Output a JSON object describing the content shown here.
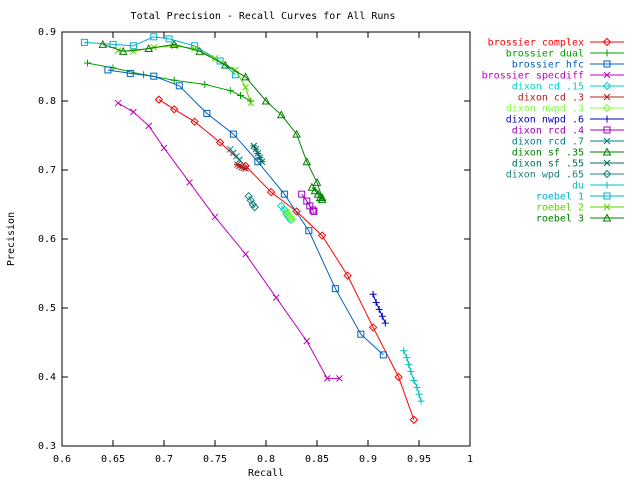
{
  "chart_data": {
    "type": "line",
    "title": "Total Precision - Recall Curves for All Runs",
    "xlabel": "Recall",
    "ylabel": "Precision",
    "xlim": [
      0.6,
      1.0
    ],
    "ylim": [
      0.3,
      0.9
    ],
    "xticks": [
      "0.6",
      "0.65",
      "0.7",
      "0.75",
      "0.8",
      "0.85",
      "0.9",
      "0.95",
      "1"
    ],
    "yticks": [
      "0.3",
      "0.4",
      "0.5",
      "0.6",
      "0.7",
      "0.8",
      "0.9"
    ],
    "grid": false,
    "legend_position": "outside-right",
    "series": [
      {
        "name": "brossier complex",
        "color": "#ff0000",
        "marker": "diamond",
        "x": [
          0.695,
          0.71,
          0.73,
          0.755,
          0.78,
          0.805,
          0.83,
          0.855,
          0.88,
          0.905,
          0.93,
          0.945
        ],
        "y": [
          0.802,
          0.788,
          0.77,
          0.74,
          0.706,
          0.668,
          0.64,
          0.605,
          0.547,
          0.472,
          0.4,
          0.338
        ]
      },
      {
        "name": "brossier dual",
        "color": "#00a000",
        "marker": "plus",
        "x": [
          0.625,
          0.65,
          0.68,
          0.71,
          0.74,
          0.765,
          0.775,
          0.785
        ],
        "y": [
          0.855,
          0.848,
          0.838,
          0.83,
          0.824,
          0.815,
          0.808,
          0.8
        ]
      },
      {
        "name": "brossier hfc",
        "color": "#0060c0",
        "marker": "square",
        "x": [
          0.645,
          0.667,
          0.69,
          0.715,
          0.742,
          0.768,
          0.792,
          0.818,
          0.842,
          0.868,
          0.893,
          0.915
        ],
        "y": [
          0.845,
          0.84,
          0.836,
          0.822,
          0.782,
          0.752,
          0.712,
          0.665,
          0.612,
          0.528,
          0.462,
          0.432
        ]
      },
      {
        "name": "brossier specdiff",
        "color": "#c000c0",
        "marker": "cross",
        "x": [
          0.655,
          0.67,
          0.685,
          0.7,
          0.725,
          0.75,
          0.78,
          0.81,
          0.84,
          0.86,
          0.872
        ],
        "y": [
          0.797,
          0.784,
          0.764,
          0.732,
          0.682,
          0.632,
          0.578,
          0.515,
          0.452,
          0.398,
          0.398
        ]
      },
      {
        "name": "dixon cd .15",
        "color": "#00d0d0",
        "marker": "diamond",
        "x": [
          0.815,
          0.818,
          0.82,
          0.822,
          0.824
        ],
        "y": [
          0.648,
          0.642,
          0.636,
          0.632,
          0.628
        ]
      },
      {
        "name": "dixon cd .3",
        "color": "#b02020",
        "marker": "asterisk",
        "x": [
          0.772,
          0.774,
          0.776,
          0.778,
          0.78
        ],
        "y": [
          0.708,
          0.706,
          0.704,
          0.703,
          0.702
        ]
      },
      {
        "name": "dixon nwpd .3",
        "color": "#80ff40",
        "marker": "diamond",
        "x": [
          0.82,
          0.822,
          0.824,
          0.826
        ],
        "y": [
          0.641,
          0.636,
          0.632,
          0.628
        ]
      },
      {
        "name": "dixon nwpd .6",
        "color": "#0000c0",
        "marker": "plus",
        "x": [
          0.905,
          0.908,
          0.911,
          0.914,
          0.917
        ],
        "y": [
          0.52,
          0.508,
          0.498,
          0.488,
          0.478
        ]
      },
      {
        "name": "dixon rcd .4",
        "color": "#a000c0",
        "marker": "square",
        "x": [
          0.835,
          0.84,
          0.843,
          0.846,
          0.847
        ],
        "y": [
          0.665,
          0.655,
          0.648,
          0.642,
          0.64
        ]
      },
      {
        "name": "dixon rcd .7",
        "color": "#008080",
        "marker": "cross",
        "x": [
          0.765,
          0.768,
          0.771,
          0.774
        ],
        "y": [
          0.73,
          0.725,
          0.72,
          0.715
        ]
      },
      {
        "name": "dixon sf .35",
        "color": "#008000",
        "marker": "triangle",
        "x": [
          0.845,
          0.848,
          0.851,
          0.853,
          0.855
        ],
        "y": [
          0.675,
          0.67,
          0.665,
          0.66,
          0.657
        ]
      },
      {
        "name": "dixon sf .55",
        "color": "#007060",
        "marker": "asterisk",
        "x": [
          0.788,
          0.79,
          0.792,
          0.794,
          0.796
        ],
        "y": [
          0.735,
          0.73,
          0.724,
          0.718,
          0.712
        ]
      },
      {
        "name": "dixon wpd .65",
        "color": "#208080",
        "marker": "diamond",
        "x": [
          0.783,
          0.785,
          0.787,
          0.789
        ],
        "y": [
          0.662,
          0.656,
          0.65,
          0.646
        ]
      },
      {
        "name": "du",
        "color": "#00c0c0",
        "marker": "plus",
        "x": [
          0.935,
          0.938,
          0.94,
          0.942,
          0.945,
          0.948,
          0.95,
          0.952
        ],
        "y": [
          0.438,
          0.428,
          0.418,
          0.408,
          0.395,
          0.385,
          0.375,
          0.365
        ]
      },
      {
        "name": "roebel 1",
        "color": "#00b0d0",
        "marker": "square",
        "x": [
          0.622,
          0.65,
          0.67,
          0.69,
          0.705,
          0.73,
          0.755,
          0.77
        ],
        "y": [
          0.885,
          0.882,
          0.88,
          0.893,
          0.89,
          0.88,
          0.858,
          0.838
        ]
      },
      {
        "name": "roebel 2",
        "color": "#60d000",
        "marker": "cross",
        "x": [
          0.655,
          0.67,
          0.69,
          0.71,
          0.73,
          0.75,
          0.77,
          0.78,
          0.785
        ],
        "y": [
          0.873,
          0.872,
          0.878,
          0.88,
          0.876,
          0.862,
          0.845,
          0.82,
          0.797
        ]
      },
      {
        "name": "roebel 3",
        "color": "#008000",
        "marker": "triangle",
        "x": [
          0.64,
          0.66,
          0.685,
          0.71,
          0.735,
          0.76,
          0.78,
          0.8,
          0.815,
          0.83,
          0.84,
          0.85,
          0.855
        ],
        "y": [
          0.882,
          0.872,
          0.876,
          0.882,
          0.872,
          0.852,
          0.835,
          0.8,
          0.78,
          0.752,
          0.712,
          0.682,
          0.66
        ]
      }
    ]
  }
}
